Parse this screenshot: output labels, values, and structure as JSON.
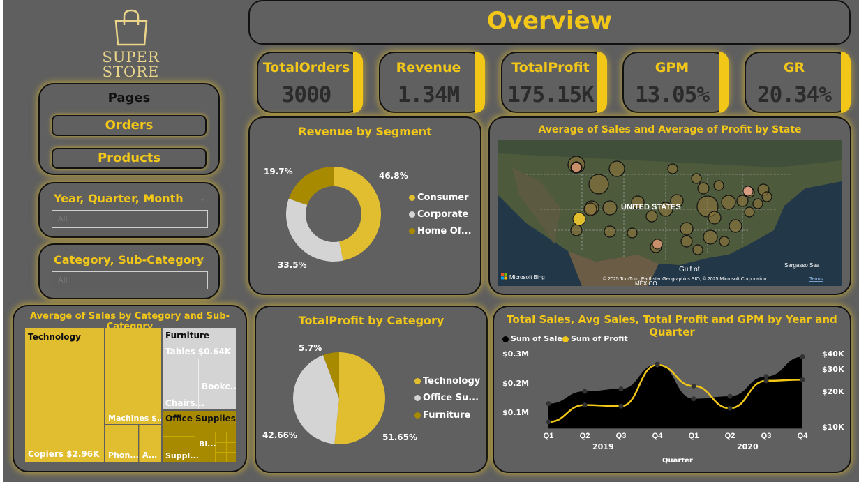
{
  "brand": {
    "line1": "SUPER",
    "line2": "STORE"
  },
  "header": {
    "title": "Overview"
  },
  "nav": {
    "title": "Pages",
    "items": [
      {
        "label": "Orders"
      },
      {
        "label": "Products"
      }
    ]
  },
  "slicers": [
    {
      "title": "Year, Quarter, Month",
      "value": "All"
    },
    {
      "title": "Category, Sub-Category",
      "value": "All"
    }
  ],
  "kpis": [
    {
      "title": "TotalOrders",
      "value": "3000"
    },
    {
      "title": "Revenue",
      "value": "1.34M"
    },
    {
      "title": "TotalProfit",
      "value": "175.15K"
    },
    {
      "title": "GPM",
      "value": "13.05%"
    },
    {
      "title": "GR",
      "value": "20.34%"
    }
  ],
  "colors": {
    "gold": "#f2c718",
    "mustard": "#e1bd30",
    "olive": "#a88a00",
    "lightgray": "#d4d4d4",
    "card": "#606060"
  },
  "segment_chart": {
    "title": "Revenue by Segment",
    "legend": [
      "Consumer",
      "Corporate",
      "Home Of..."
    ],
    "labels": {
      "consumer": "46.8%",
      "corporate": "33.5%",
      "home": "19.7%"
    }
  },
  "map": {
    "title": "Average of Sales and Average of Profit by State",
    "country_label": "UNITED STATES",
    "gulf_label": "Gulf of",
    "mexico_label": "MÉXICO",
    "sea_label": "Sargasso Sea",
    "bing_label": "Microsoft Bing",
    "attribution": "© 2025 TomTom, Earthstar Geographics SIO, © 2025 Microsoft Corporation",
    "terms": "Terms"
  },
  "treemap": {
    "title": "Average of Sales by Category and Sub-Category",
    "technology": "Technology",
    "copiers": "Copiers $2.96K",
    "machines": "Machines $...",
    "phones": "Phon...",
    "accessories": "A...",
    "furniture": "Furniture",
    "tables": "Tables $0.64K",
    "chairs": "Chairs...",
    "bookcases": "Bookc...",
    "office": "Office Supplies",
    "supplies": "Suppl...",
    "binders": "Bi..."
  },
  "profit_chart": {
    "title": "TotalProfit by Category",
    "legend": [
      "Technology",
      "Office Su...",
      "Furniture"
    ],
    "labels": {
      "technology": "51.65%",
      "office": "42.66%",
      "furniture": "5.7%"
    }
  },
  "combo": {
    "title": "Total Sales, Avg Sales, Total Profit and GPM by Year and Quarter",
    "legend": [
      "Sum of Sales",
      "Sum of Profit"
    ],
    "yleft": [
      "$0.3M",
      "$0.2M",
      "$0.1M"
    ],
    "yright": [
      "$40K",
      "$30K",
      "$20K",
      "$10K"
    ],
    "quarters": [
      "Q1",
      "Q2",
      "Q3",
      "Q4",
      "Q1",
      "Q2",
      "Q3",
      "Q4"
    ],
    "years": [
      "2019",
      "2020"
    ],
    "xlabel": "Quarter"
  },
  "chart_data": [
    {
      "type": "pie",
      "title": "Revenue by Segment",
      "categories": [
        "Consumer",
        "Corporate",
        "Home Office"
      ],
      "values": [
        46.8,
        33.5,
        19.7
      ],
      "donut": true
    },
    {
      "type": "pie",
      "title": "TotalProfit by Category",
      "categories": [
        "Technology",
        "Office Supplies",
        "Furniture"
      ],
      "values": [
        51.65,
        42.66,
        5.7
      ]
    },
    {
      "type": "area",
      "title": "Total Sales, Avg Sales, Total Profit and GPM by Year and Quarter",
      "categories": [
        "2019 Q1",
        "2019 Q2",
        "2019 Q3",
        "2019 Q4",
        "2020 Q1",
        "2020 Q2",
        "2020 Q3",
        "2020 Q4"
      ],
      "xlabel": "Quarter",
      "series": [
        {
          "name": "Sum of Sales",
          "axis": "left",
          "values": [
            0.1,
            0.15,
            0.16,
            0.26,
            0.12,
            0.13,
            0.21,
            0.29
          ]
        },
        {
          "name": "Sum of Profit",
          "axis": "right",
          "values": [
            8000,
            16000,
            15500,
            35000,
            25000,
            14500,
            27500,
            28000
          ]
        }
      ],
      "ylim_left": [
        0,
        0.3
      ],
      "ylim_right": [
        5000,
        40000
      ]
    }
  ]
}
